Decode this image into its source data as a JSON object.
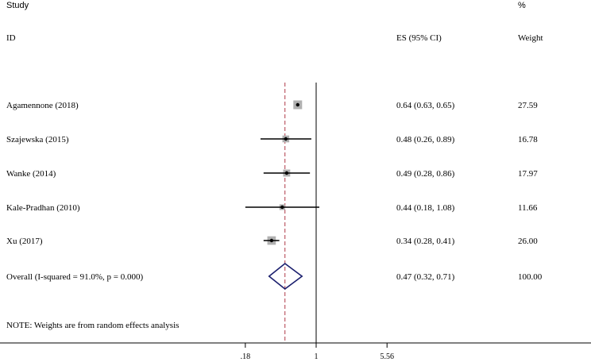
{
  "chart_data": {
    "type": "forest",
    "headers": {
      "study": "Study",
      "id": "ID",
      "es": "ES (95% CI)",
      "weight_unit": "%",
      "weight": "Weight"
    },
    "studies": [
      {
        "name": "Agamennone (2018)",
        "es": 0.64,
        "lo": 0.63,
        "hi": 0.65,
        "es_text": "0.64 (0.63, 0.65)",
        "weight": 27.59,
        "weight_text": "27.59"
      },
      {
        "name": "Szajewska (2015)",
        "es": 0.48,
        "lo": 0.26,
        "hi": 0.89,
        "es_text": "0.48 (0.26, 0.89)",
        "weight": 16.78,
        "weight_text": "16.78"
      },
      {
        "name": "Wanke (2014)",
        "es": 0.49,
        "lo": 0.28,
        "hi": 0.86,
        "es_text": "0.49 (0.28, 0.86)",
        "weight": 17.97,
        "weight_text": "17.97"
      },
      {
        "name": "Kale-Pradhan (2010)",
        "es": 0.44,
        "lo": 0.18,
        "hi": 1.08,
        "es_text": "0.44 (0.18, 1.08)",
        "weight": 11.66,
        "weight_text": "11.66"
      },
      {
        "name": "Xu (2017)",
        "es": 0.34,
        "lo": 0.28,
        "hi": 0.41,
        "es_text": "0.34 (0.28, 0.41)",
        "weight": 26.0,
        "weight_text": "26.00"
      }
    ],
    "overall": {
      "name": "Overall  (I-squared = 91.0%, p = 0.000)",
      "es": 0.47,
      "lo": 0.32,
      "hi": 0.71,
      "es_text": "0.47 (0.32, 0.71)",
      "weight_text": "100.00"
    },
    "note": "NOTE: Weights are from random effects analysis",
    "x_scale": "log",
    "null_line": 1,
    "x_ticks": [
      0.18,
      1,
      5.56
    ],
    "x_tick_labels": [
      ".18",
      "1",
      "5.56"
    ],
    "colors": {
      "box": "#b0b0b0",
      "ci_line": "#000000",
      "diamond": "#1b1f6e",
      "overall_line": "#b03a48"
    }
  }
}
